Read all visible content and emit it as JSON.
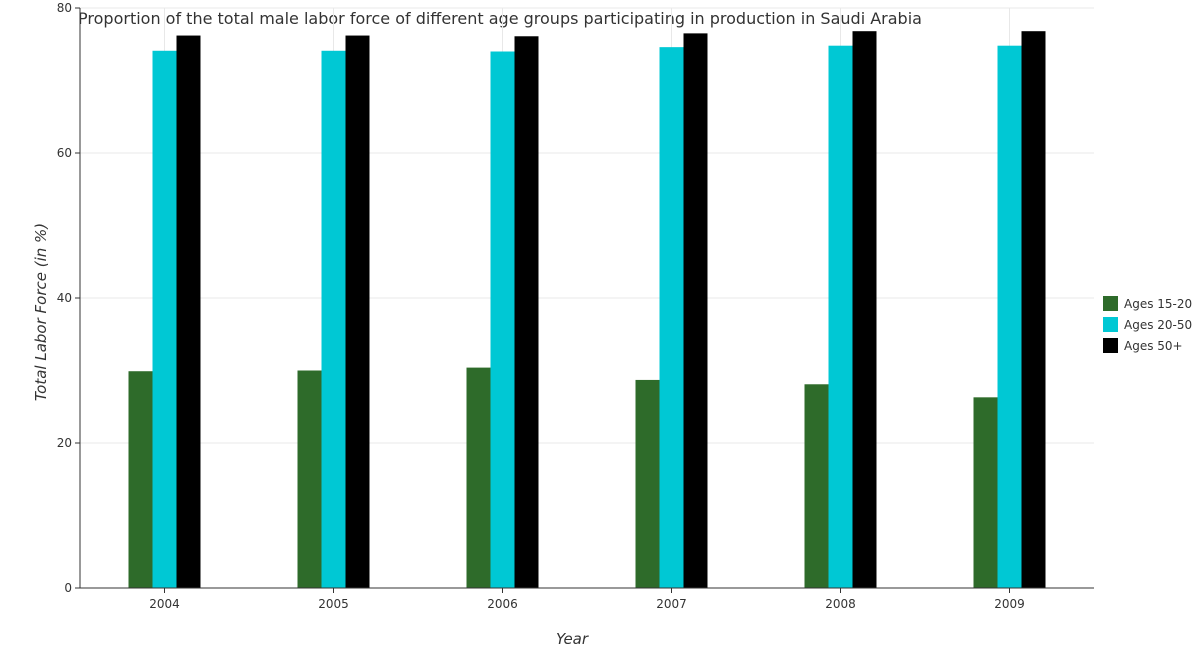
{
  "chart_data": {
    "type": "bar",
    "title": "Proportion of the total male labor force of different age groups participating in production in Saudi Arabia",
    "xlabel": "Year",
    "ylabel": "Total Labor Force (in %)",
    "categories": [
      "2004",
      "2005",
      "2006",
      "2007",
      "2008",
      "2009"
    ],
    "series": [
      {
        "name": "Ages 15-20",
        "color": "#2e6b2a",
        "values": [
          29.9,
          30.0,
          30.4,
          28.7,
          28.1,
          26.3
        ]
      },
      {
        "name": "Ages 20-50",
        "color": "#00c8d4",
        "values": [
          74.1,
          74.1,
          74.0,
          74.6,
          74.8,
          74.8
        ]
      },
      {
        "name": "Ages 50+",
        "color": "#000000",
        "values": [
          76.2,
          76.2,
          76.1,
          76.5,
          76.8,
          76.8
        ]
      }
    ],
    "ylim": [
      0,
      80
    ],
    "yticks": [
      0,
      20,
      40,
      60,
      80
    ],
    "grid": true,
    "legend_position": "right"
  }
}
